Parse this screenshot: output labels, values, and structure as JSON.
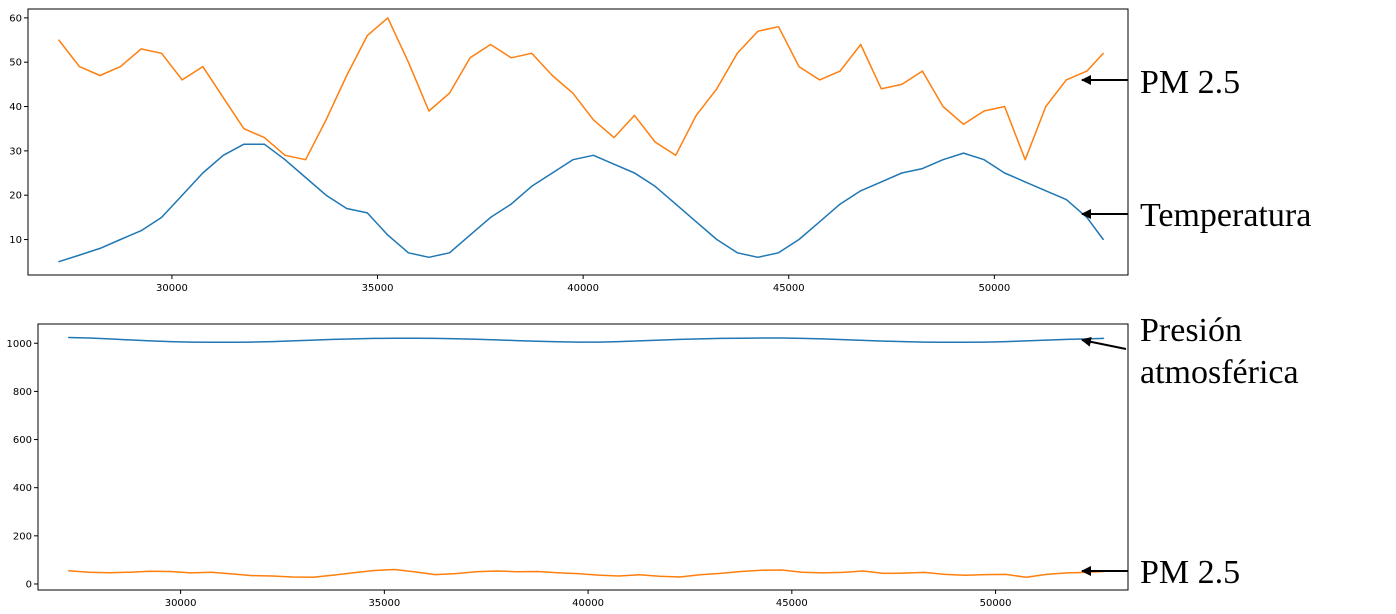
{
  "chart_data": [
    {
      "type": "line",
      "x": [
        27250,
        27750,
        28250,
        28750,
        29250,
        29750,
        30250,
        30750,
        31250,
        31750,
        32250,
        32750,
        33250,
        33750,
        34250,
        34750,
        35250,
        35750,
        36250,
        36750,
        37250,
        37750,
        38250,
        38750,
        39250,
        39750,
        40250,
        40750,
        41250,
        41750,
        42250,
        42750,
        43250,
        43750,
        44250,
        44750,
        45250,
        45750,
        46250,
        46750,
        47250,
        47750,
        48250,
        48750,
        49250,
        49750,
        50250,
        50750,
        51250,
        51750,
        52250,
        52650
      ],
      "series": [
        {
          "name": "PM 2.5",
          "color": "#ff7f0e",
          "values": [
            55,
            49,
            47,
            49,
            53,
            52,
            46,
            49,
            42,
            35,
            33,
            29,
            28,
            37,
            47,
            56,
            60,
            50,
            39,
            43,
            51,
            54,
            51,
            52,
            47,
            43,
            37,
            33,
            38,
            32,
            29,
            38,
            44,
            52,
            57,
            58,
            49,
            46,
            48,
            54,
            44,
            45,
            48,
            40,
            36,
            39,
            40,
            28,
            40,
            46,
            48,
            52
          ]
        },
        {
          "name": "Temperatura",
          "color": "#1f77b4",
          "values": [
            5,
            6.5,
            8,
            10,
            12,
            15,
            20,
            25,
            29,
            31.5,
            31.5,
            28,
            24,
            20,
            17,
            16,
            11,
            7,
            6,
            7,
            11,
            15,
            18,
            22,
            25,
            28,
            29,
            27,
            25,
            22,
            18,
            14,
            10,
            7,
            6,
            7,
            10,
            14,
            18,
            21,
            23,
            25,
            26,
            28,
            29.5,
            28,
            25,
            23,
            21,
            19,
            15,
            10
          ]
        }
      ],
      "xlim": [
        26500,
        53250
      ],
      "ylim": [
        2,
        62
      ],
      "xticks": [
        30000,
        35000,
        40000,
        45000,
        50000
      ],
      "yticks": [
        10,
        20,
        30,
        40,
        50,
        60
      ],
      "grid": false
    },
    {
      "type": "line",
      "x": [
        27250,
        27750,
        28250,
        28750,
        29250,
        29750,
        30250,
        30750,
        31250,
        31750,
        32250,
        32750,
        33250,
        33750,
        34250,
        34750,
        35250,
        35750,
        36250,
        36750,
        37250,
        37750,
        38250,
        38750,
        39250,
        39750,
        40250,
        40750,
        41250,
        41750,
        42250,
        42750,
        43250,
        43750,
        44250,
        44750,
        45250,
        45750,
        46250,
        46750,
        47250,
        47750,
        48250,
        48750,
        49250,
        49750,
        50250,
        50750,
        51250,
        51750,
        52250,
        52650
      ],
      "series": [
        {
          "name": "Presión atmosférica",
          "color": "#1f77b4",
          "values": [
            1024,
            1022,
            1018,
            1014,
            1010,
            1007,
            1005,
            1004,
            1004,
            1005,
            1007,
            1010,
            1013,
            1016,
            1018,
            1020,
            1021,
            1021,
            1020,
            1019,
            1017,
            1014,
            1011,
            1008,
            1006,
            1005,
            1005,
            1007,
            1010,
            1013,
            1016,
            1018,
            1020,
            1021,
            1022,
            1022,
            1020,
            1018,
            1015,
            1012,
            1009,
            1007,
            1005,
            1004,
            1004,
            1005,
            1007,
            1010,
            1013,
            1016,
            1018,
            1020
          ]
        },
        {
          "name": "PM 2.5",
          "color": "#ff7f0e",
          "values": [
            55,
            49,
            47,
            49,
            53,
            52,
            46,
            49,
            42,
            35,
            33,
            29,
            28,
            37,
            47,
            56,
            60,
            50,
            39,
            43,
            51,
            54,
            51,
            52,
            47,
            43,
            37,
            33,
            38,
            32,
            29,
            38,
            44,
            52,
            57,
            58,
            49,
            46,
            48,
            54,
            44,
            45,
            48,
            40,
            36,
            39,
            40,
            28,
            40,
            46,
            48,
            52
          ]
        }
      ],
      "xlim": [
        26500,
        53250
      ],
      "ylim": [
        -25,
        1080
      ],
      "xticks": [
        30000,
        35000,
        40000,
        45000,
        50000
      ],
      "yticks": [
        0,
        200,
        400,
        600,
        800,
        1000
      ],
      "grid": false
    }
  ],
  "annotations": {
    "top_pm": "PM 2.5",
    "top_temp": "Temperatura",
    "bottom_pres_line1": "Presión",
    "bottom_pres_line2": "atmosférica",
    "bottom_pm": "PM 2.5"
  }
}
